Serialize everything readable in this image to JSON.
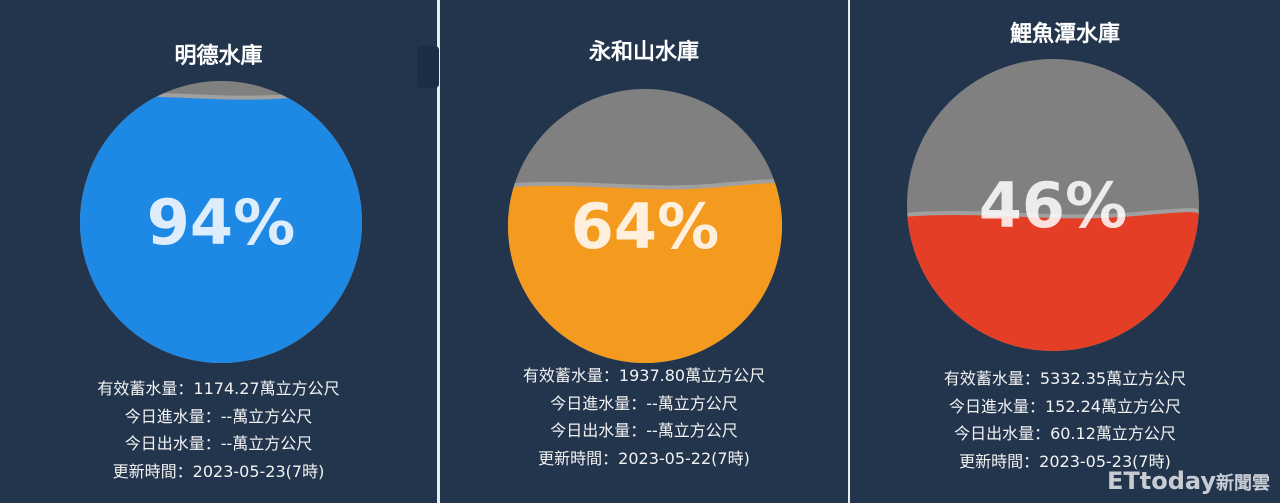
{
  "reservoirs": [
    {
      "name": "明德水庫",
      "percent_label": "94%",
      "percent": 94,
      "fill_color": "#1e88e5",
      "storage": "有效蓄水量：1174.27萬立方公尺",
      "inflow": "今日進水量：--萬立方公尺",
      "outflow": "今日出水量：--萬立方公尺",
      "updated": "更新時間：2023-05-23(7時)"
    },
    {
      "name": "永和山水庫",
      "percent_label": "64%",
      "percent": 64,
      "fill_color": "#f39a1f",
      "storage": "有效蓄水量：1937.80萬立方公尺",
      "inflow": "今日進水量：--萬立方公尺",
      "outflow": "今日出水量：--萬立方公尺",
      "updated": "更新時間：2023-05-22(7時)"
    },
    {
      "name": "鯉魚潭水庫",
      "percent_label": "46%",
      "percent": 46,
      "fill_color": "#e53e27",
      "storage": "有效蓄水量：5332.35萬立方公尺",
      "inflow": "今日進水量：152.24萬立方公尺",
      "outflow": "今日出水量：60.12萬立方公尺",
      "updated": "更新時間：2023-05-23(7時)"
    }
  ],
  "empty_color": "#808080",
  "background_color": "#22354d",
  "watermark": {
    "brand": "ETtoday",
    "suffix": "新聞雲"
  }
}
